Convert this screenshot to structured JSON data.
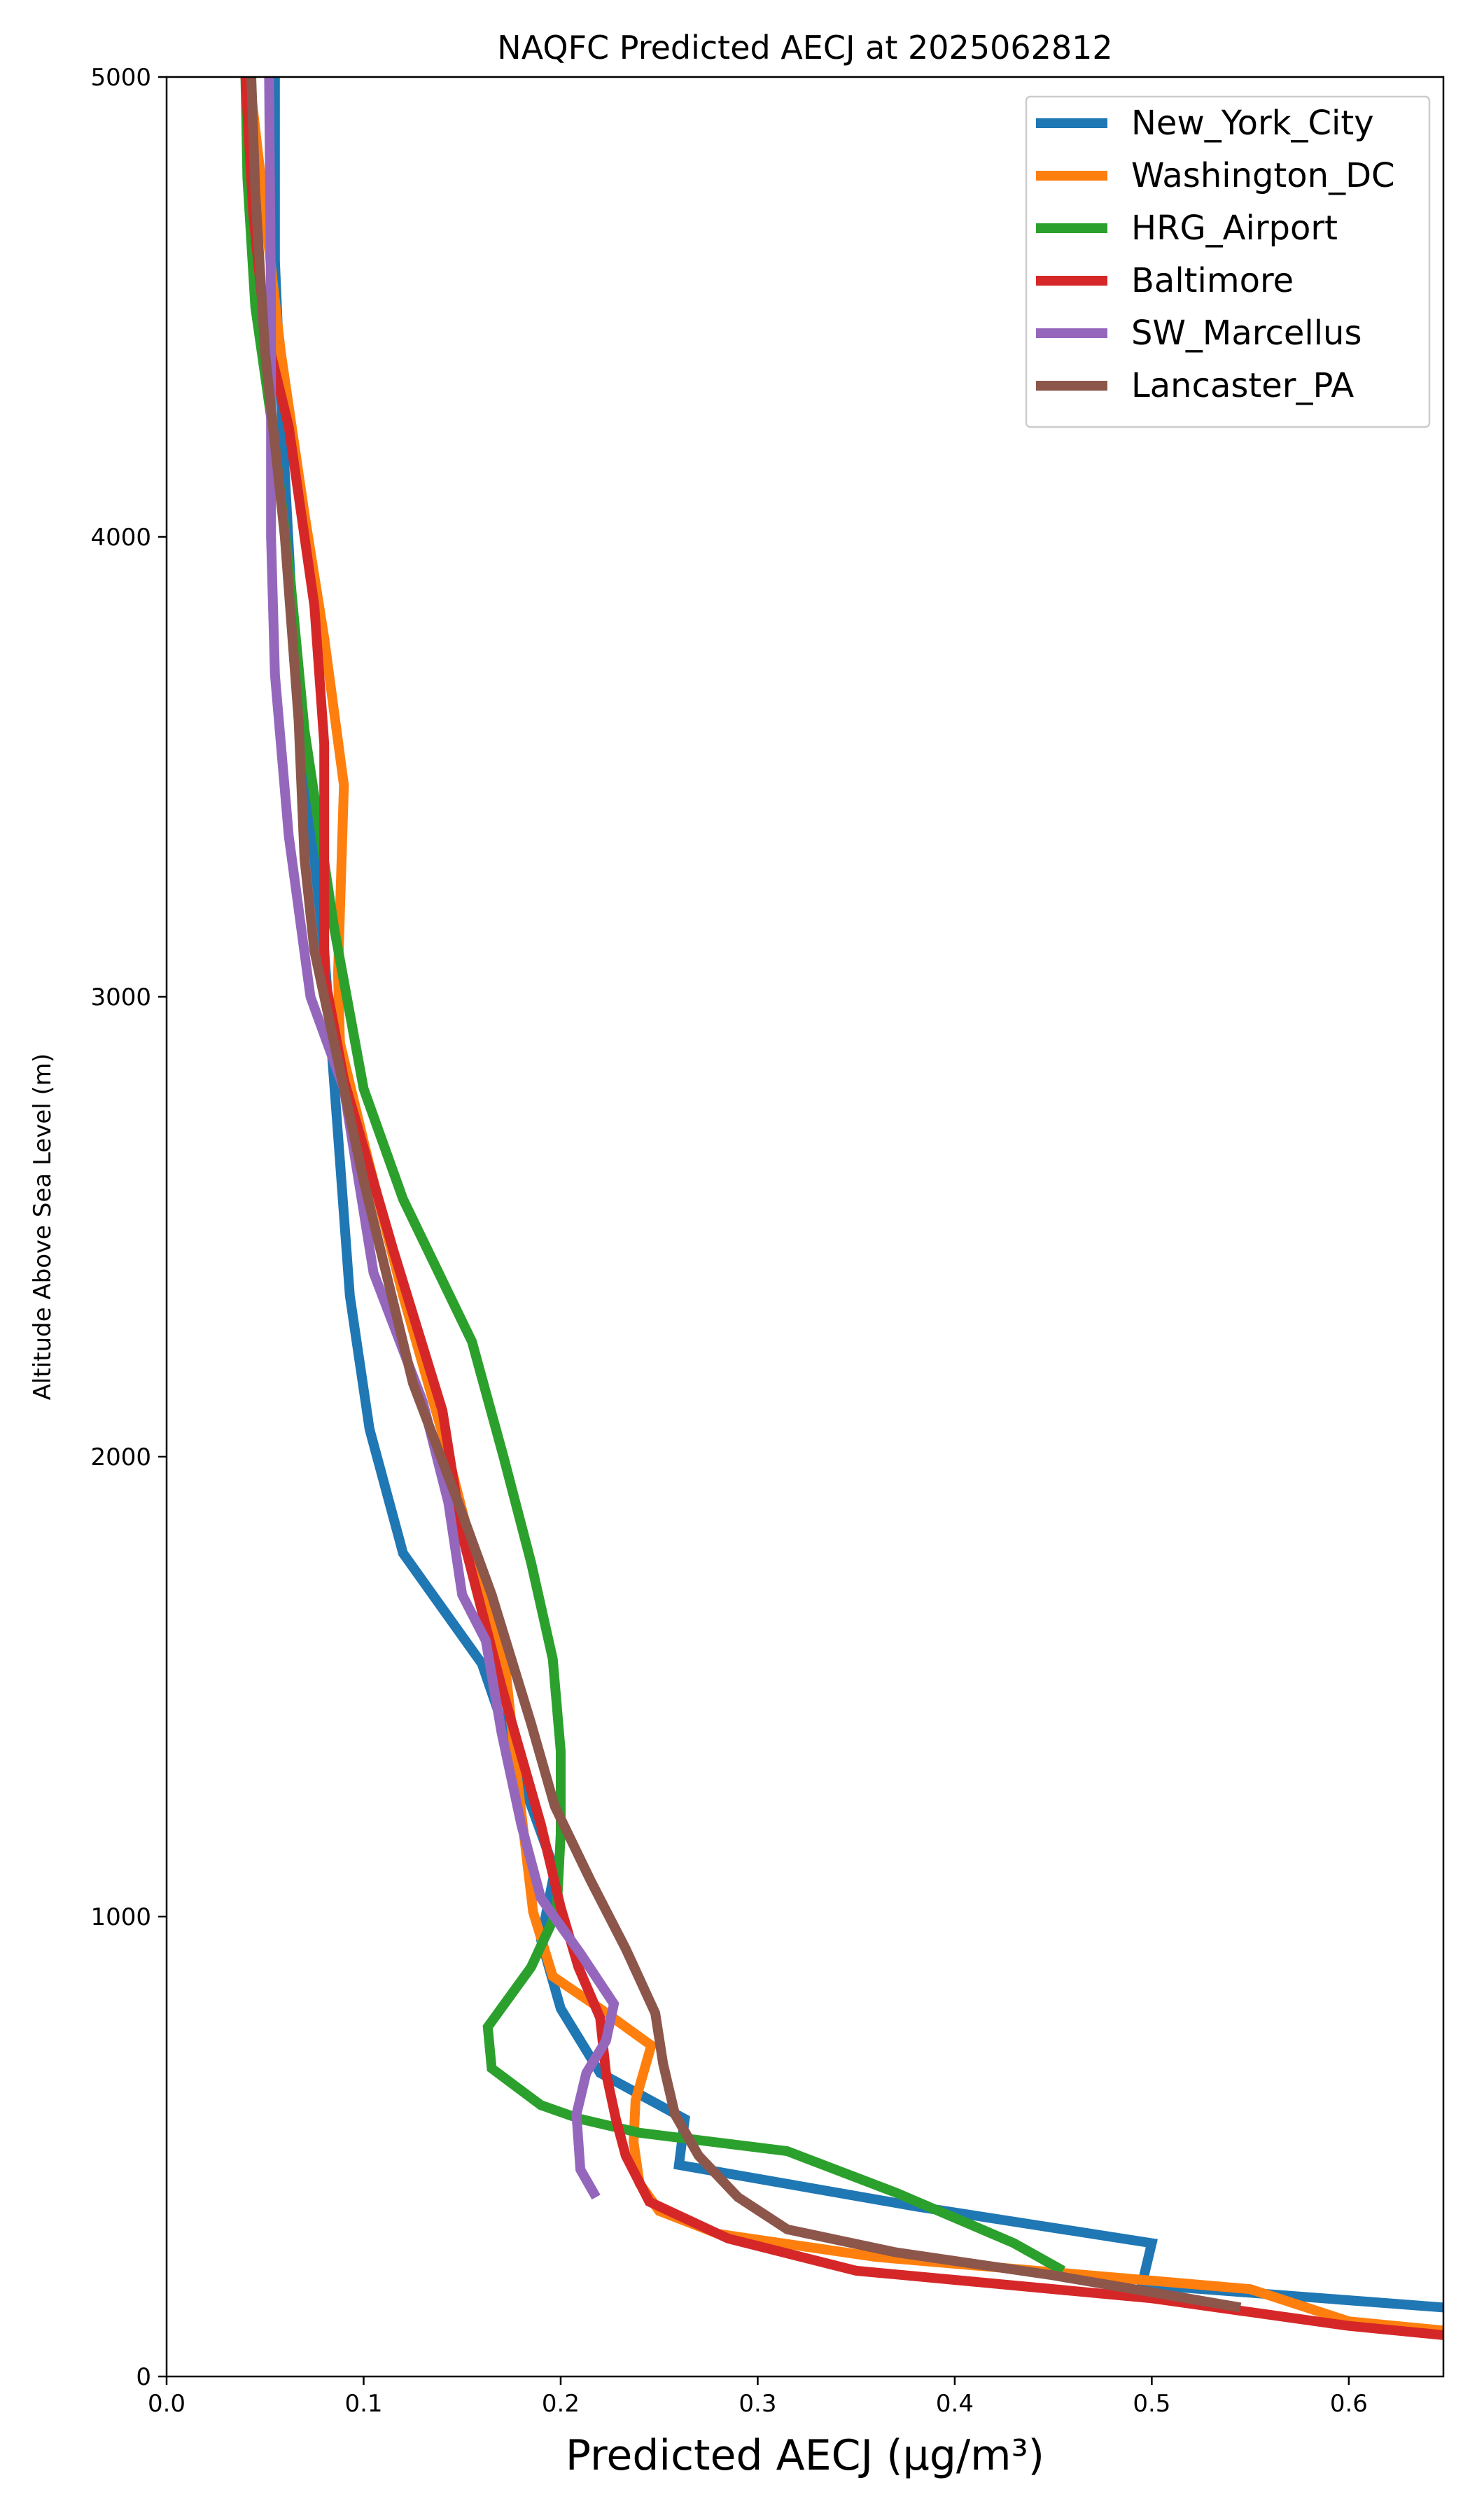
{
  "chart_data": {
    "type": "line",
    "title": "NAQFC Predicted AECJ at 2025062812",
    "xlabel": "Predicted AECJ (μg/m³)",
    "ylabel": "Altitude Above Sea Level (m)",
    "xlim": [
      0.0,
      0.648
    ],
    "ylim": [
      0,
      5000
    ],
    "x_ticks": [
      0.0,
      0.1,
      0.2,
      0.3,
      0.4,
      0.5,
      0.6
    ],
    "x_tick_labels": [
      "0.0",
      "0.1",
      "0.2",
      "0.3",
      "0.4",
      "0.5",
      "0.6"
    ],
    "y_ticks": [
      0,
      1000,
      2000,
      3000,
      4000,
      5000
    ],
    "y_tick_labels": [
      "0",
      "1000",
      "2000",
      "3000",
      "4000",
      "5000"
    ],
    "grid": false,
    "legend_position": "top-right",
    "series": [
      {
        "name": "New_York_City",
        "color": "#1f77b4",
        "points": [
          [
            0.648,
            150
          ],
          [
            0.495,
            200
          ],
          [
            0.5,
            290
          ],
          [
            0.38,
            370
          ],
          [
            0.26,
            460
          ],
          [
            0.263,
            560
          ],
          [
            0.22,
            660
          ],
          [
            0.2,
            800
          ],
          [
            0.19,
            950
          ],
          [
            0.197,
            1100
          ],
          [
            0.18,
            1300
          ],
          [
            0.16,
            1550
          ],
          [
            0.12,
            1790
          ],
          [
            0.103,
            2060
          ],
          [
            0.093,
            2350
          ],
          [
            0.087,
            2700
          ],
          [
            0.08,
            3100
          ],
          [
            0.07,
            3500
          ],
          [
            0.063,
            3900
          ],
          [
            0.058,
            4300
          ],
          [
            0.055,
            4600
          ],
          [
            0.055,
            5000
          ]
        ]
      },
      {
        "name": "Washington_DC",
        "color": "#ff7f0e",
        "points": [
          [
            0.648,
            100
          ],
          [
            0.6,
            120
          ],
          [
            0.55,
            190
          ],
          [
            0.36,
            260
          ],
          [
            0.28,
            310
          ],
          [
            0.25,
            360
          ],
          [
            0.24,
            420
          ],
          [
            0.237,
            510
          ],
          [
            0.238,
            600
          ],
          [
            0.246,
            720
          ],
          [
            0.22,
            800
          ],
          [
            0.196,
            870
          ],
          [
            0.186,
            1010
          ],
          [
            0.178,
            1300
          ],
          [
            0.172,
            1540
          ],
          [
            0.155,
            1800
          ],
          [
            0.14,
            2050
          ],
          [
            0.12,
            2350
          ],
          [
            0.102,
            2650
          ],
          [
            0.088,
            2900
          ],
          [
            0.087,
            3050
          ],
          [
            0.09,
            3460
          ],
          [
            0.08,
            3780
          ],
          [
            0.07,
            4050
          ],
          [
            0.058,
            4400
          ],
          [
            0.05,
            4700
          ],
          [
            0.042,
            5000
          ]
        ]
      },
      {
        "name": "HRG_Airport",
        "color": "#2ca02c",
        "points": [
          [
            0.455,
            230
          ],
          [
            0.43,
            290
          ],
          [
            0.37,
            400
          ],
          [
            0.315,
            490
          ],
          [
            0.24,
            530
          ],
          [
            0.21,
            560
          ],
          [
            0.19,
            590
          ],
          [
            0.165,
            670
          ],
          [
            0.163,
            760
          ],
          [
            0.185,
            890
          ],
          [
            0.198,
            1010
          ],
          [
            0.2,
            1180
          ],
          [
            0.2,
            1360
          ],
          [
            0.196,
            1560
          ],
          [
            0.185,
            1770
          ],
          [
            0.171,
            2000
          ],
          [
            0.155,
            2250
          ],
          [
            0.12,
            2560
          ],
          [
            0.1,
            2800
          ],
          [
            0.085,
            3150
          ],
          [
            0.07,
            3580
          ],
          [
            0.063,
            3900
          ],
          [
            0.055,
            4200
          ],
          [
            0.045,
            4500
          ],
          [
            0.041,
            4780
          ],
          [
            0.04,
            5000
          ]
        ]
      },
      {
        "name": "Baltimore",
        "color": "#d62728",
        "points": [
          [
            0.648,
            90
          ],
          [
            0.6,
            110
          ],
          [
            0.5,
            170
          ],
          [
            0.35,
            230
          ],
          [
            0.285,
            300
          ],
          [
            0.245,
            380
          ],
          [
            0.233,
            480
          ],
          [
            0.228,
            560
          ],
          [
            0.223,
            660
          ],
          [
            0.22,
            780
          ],
          [
            0.209,
            890
          ],
          [
            0.2,
            1020
          ],
          [
            0.19,
            1200
          ],
          [
            0.17,
            1500
          ],
          [
            0.15,
            1830
          ],
          [
            0.14,
            2100
          ],
          [
            0.115,
            2450
          ],
          [
            0.09,
            2820
          ],
          [
            0.08,
            3050
          ],
          [
            0.08,
            3550
          ],
          [
            0.075,
            3850
          ],
          [
            0.062,
            4240
          ],
          [
            0.05,
            4450
          ],
          [
            0.044,
            4700
          ],
          [
            0.04,
            5000
          ]
        ]
      },
      {
        "name": "SW_Marcellus",
        "color": "#9467bd",
        "points": [
          [
            0.218,
            390
          ],
          [
            0.21,
            450
          ],
          [
            0.208,
            570
          ],
          [
            0.213,
            660
          ],
          [
            0.223,
            730
          ],
          [
            0.227,
            810
          ],
          [
            0.21,
            920
          ],
          [
            0.19,
            1040
          ],
          [
            0.18,
            1200
          ],
          [
            0.17,
            1400
          ],
          [
            0.162,
            1600
          ],
          [
            0.15,
            1700
          ],
          [
            0.143,
            1900
          ],
          [
            0.13,
            2120
          ],
          [
            0.105,
            2400
          ],
          [
            0.09,
            2800
          ],
          [
            0.073,
            3000
          ],
          [
            0.062,
            3350
          ],
          [
            0.055,
            3700
          ],
          [
            0.053,
            4000
          ],
          [
            0.053,
            4500
          ],
          [
            0.052,
            5000
          ]
        ]
      },
      {
        "name": "Lancaster_PA",
        "color": "#8c564b",
        "points": [
          [
            0.545,
            150
          ],
          [
            0.45,
            220
          ],
          [
            0.37,
            270
          ],
          [
            0.315,
            320
          ],
          [
            0.29,
            390
          ],
          [
            0.27,
            480
          ],
          [
            0.258,
            570
          ],
          [
            0.252,
            680
          ],
          [
            0.248,
            790
          ],
          [
            0.233,
            930
          ],
          [
            0.215,
            1080
          ],
          [
            0.197,
            1240
          ],
          [
            0.185,
            1420
          ],
          [
            0.165,
            1700
          ],
          [
            0.148,
            1900
          ],
          [
            0.125,
            2160
          ],
          [
            0.1,
            2600
          ],
          [
            0.085,
            2900
          ],
          [
            0.075,
            3100
          ],
          [
            0.07,
            3300
          ],
          [
            0.067,
            3600
          ],
          [
            0.06,
            4000
          ],
          [
            0.05,
            4400
          ],
          [
            0.045,
            4750
          ],
          [
            0.043,
            5000
          ]
        ]
      }
    ]
  }
}
